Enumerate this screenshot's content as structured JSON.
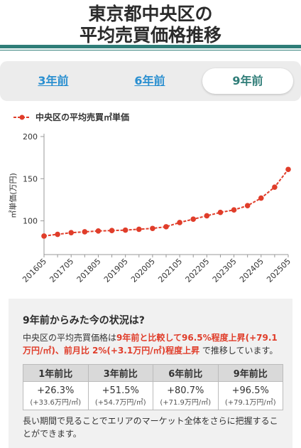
{
  "header": {
    "title_line1": "東京都中央区の",
    "title_line2": "平均売買価格推移"
  },
  "tabs": [
    {
      "label": "3年前",
      "active": false
    },
    {
      "label": "6年前",
      "active": false
    },
    {
      "label": "9年前",
      "active": true
    }
  ],
  "chart_data": {
    "type": "line",
    "legend": "中央区の平均売買㎡単価",
    "ylabel": "㎡単価(万円)",
    "xlabel": "",
    "ylim": [
      60,
      200
    ],
    "yticks": [
      "100",
      "150",
      "200"
    ],
    "x": [
      "201605",
      "201611",
      "201705",
      "201711",
      "201805",
      "201811",
      "201905",
      "201911",
      "202005",
      "202011",
      "202105",
      "202111",
      "202205",
      "202211",
      "202305",
      "202311",
      "202405",
      "202411",
      "202505"
    ],
    "xtick_labels": [
      "201605",
      "201705",
      "201805",
      "201905",
      "202005",
      "202105",
      "202205",
      "202305",
      "202405",
      "202505"
    ],
    "series": [
      {
        "name": "中央区の平均売買㎡単価",
        "color": "#e03d2a",
        "values": [
          82,
          84,
          86,
          87,
          88,
          88.5,
          89,
          90,
          91,
          93,
          98,
          102,
          106,
          110,
          113,
          118,
          127,
          140,
          161
        ]
      }
    ],
    "grid": false
  },
  "summary": {
    "heading": "9年前からみた今の状況は?",
    "text_pre": "中央区の平均売買価格は",
    "text_red1": "9年前と比較して96.5%程度上昇(+79.1万円/㎡)、前月比 2%(+3.1万円/㎡)程度上昇",
    "text_post": " で推移しています。",
    "table": {
      "headers": [
        "1年前比",
        "3年前比",
        "6年前比",
        "9年前比"
      ],
      "pcts": [
        "+26.3%",
        "+51.5%",
        "+80.7%",
        "+96.5%"
      ],
      "amounts": [
        "(+33.6万円/㎡)",
        "(+54.7万円/㎡)",
        "(+71.9万円/㎡)",
        "(+79.1万円/㎡)"
      ]
    },
    "note": "長い期間で見ることでエリアのマーケット全体をさらに把握することができます。"
  }
}
